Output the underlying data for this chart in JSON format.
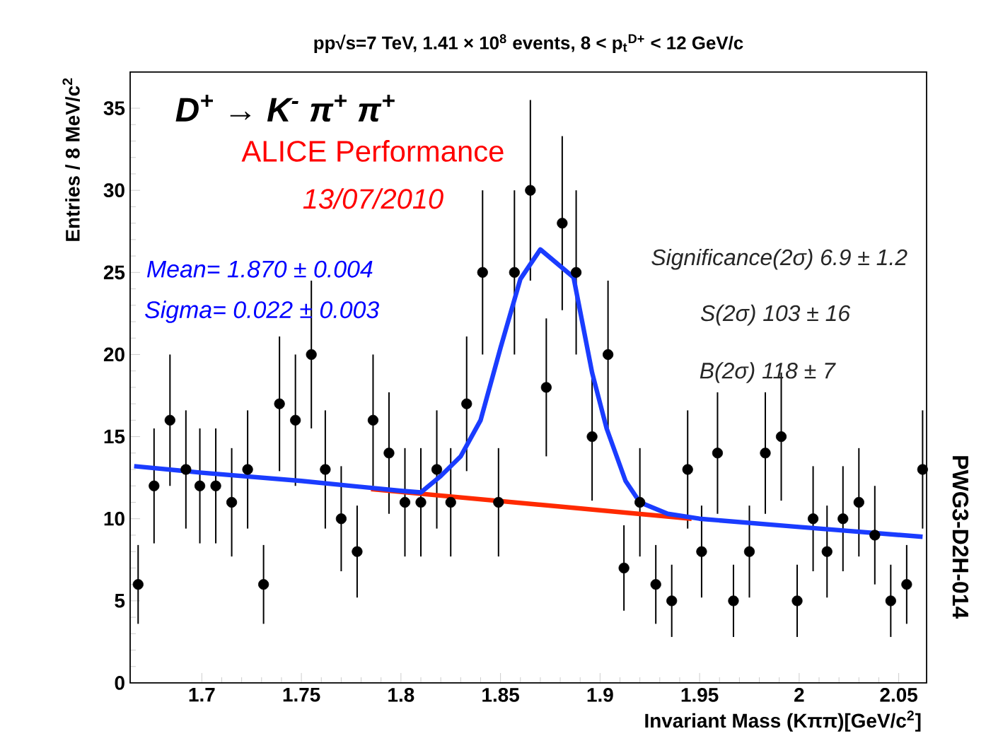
{
  "chart_data": {
    "type": "scatter",
    "title": "pp√s=7 TeV, 1.41 × 10$^{8}$ events, 8 < p$_{t}$$^{D+}$ < 12 GeV/c",
    "xlabel": "Invariant Mass (Kππ)[GeV/c$^{2}$]",
    "ylabel": "Entries / 8 MeV/c$^{2}$",
    "xlim": [
      1.664,
      2.064
    ],
    "ylim": [
      0,
      37.2
    ],
    "xticks": [
      1.7,
      1.75,
      1.8,
      1.85,
      1.9,
      1.95,
      2,
      2.05
    ],
    "yticks": [
      0,
      5,
      10,
      15,
      20,
      25,
      30,
      35
    ],
    "grid": false,
    "series": [
      {
        "type": "scatter",
        "color": "#000000",
        "marker": "circle",
        "x": [
          1.668,
          1.676,
          1.684,
          1.692,
          1.699,
          1.707,
          1.715,
          1.723,
          1.731,
          1.739,
          1.747,
          1.755,
          1.762,
          1.77,
          1.778,
          1.786,
          1.794,
          1.802,
          1.81,
          1.818,
          1.825,
          1.833,
          1.841,
          1.849,
          1.857,
          1.865,
          1.873,
          1.881,
          1.888,
          1.896,
          1.904,
          1.912,
          1.92,
          1.928,
          1.936,
          1.944,
          1.951,
          1.959,
          1.967,
          1.975,
          1.983,
          1.991,
          1.999,
          2.007,
          2.014,
          2.022,
          2.03,
          2.038,
          2.046,
          2.054,
          2.062
        ],
        "values": [
          6,
          12,
          16,
          13,
          12,
          12,
          11,
          13,
          6,
          17,
          16,
          20,
          13,
          10,
          8,
          16,
          14,
          11,
          11,
          13,
          11,
          17,
          25,
          11,
          25,
          30,
          18,
          28,
          25,
          15,
          20,
          7,
          11,
          6,
          5,
          13,
          8,
          14,
          5,
          8,
          14,
          15,
          5,
          10,
          8,
          10,
          11,
          9,
          5,
          6,
          13
        ],
        "errors": [
          2.4,
          3.5,
          4,
          3.6,
          3.5,
          3.5,
          3.3,
          3.6,
          2.4,
          4.1,
          4,
          4.5,
          3.6,
          3.2,
          2.8,
          4,
          3.7,
          3.3,
          3.3,
          3.6,
          3.3,
          4.1,
          5,
          3.3,
          5,
          5.5,
          4.2,
          5.3,
          5,
          3.9,
          4.5,
          2.6,
          3.3,
          2.4,
          2.2,
          3.6,
          2.8,
          3.7,
          2.2,
          2.8,
          3.7,
          3.9,
          2.2,
          3.2,
          2.8,
          3.2,
          3.3,
          3,
          2.2,
          2.4,
          3.6
        ]
      },
      {
        "type": "line",
        "color": "#ff2a00",
        "marker": "none",
        "line_style": "solid",
        "x": [
          1.785,
          1.946
        ],
        "values": [
          11.8,
          10.0
        ]
      },
      {
        "type": "line",
        "color": "#1a3cff",
        "marker": "none",
        "line_style": "solid",
        "x": [
          1.666,
          1.7,
          1.75,
          1.8,
          1.81,
          1.82,
          1.83,
          1.84,
          1.85,
          1.86,
          1.87,
          1.8867,
          1.896,
          1.9033,
          1.9128,
          1.92,
          1.934,
          1.95,
          2.0,
          2.062
        ],
        "values": [
          13.2,
          12.8,
          12.3,
          11.7,
          11.6,
          12.6,
          13.8,
          16.0,
          20.4,
          24.6,
          26.4,
          24.7,
          18.9,
          15.5,
          12.3,
          11.0,
          10.3,
          10.0,
          9.5,
          8.9
        ]
      }
    ],
    "annotations": [
      "D$^{+}$ → K$^{-}$ π$^{+}$ π$^{+}$",
      "ALICE Performance",
      "13/07/2010",
      "Mean= 1.870 ± 0.004",
      "Sigma= 0.022 ± 0.003",
      "Significance(2σ) 6.9 ± 1.2",
      "S(2σ) 103 ± 16",
      "B(2σ) 118 ± 7",
      "PWG3-D2H-014"
    ]
  }
}
